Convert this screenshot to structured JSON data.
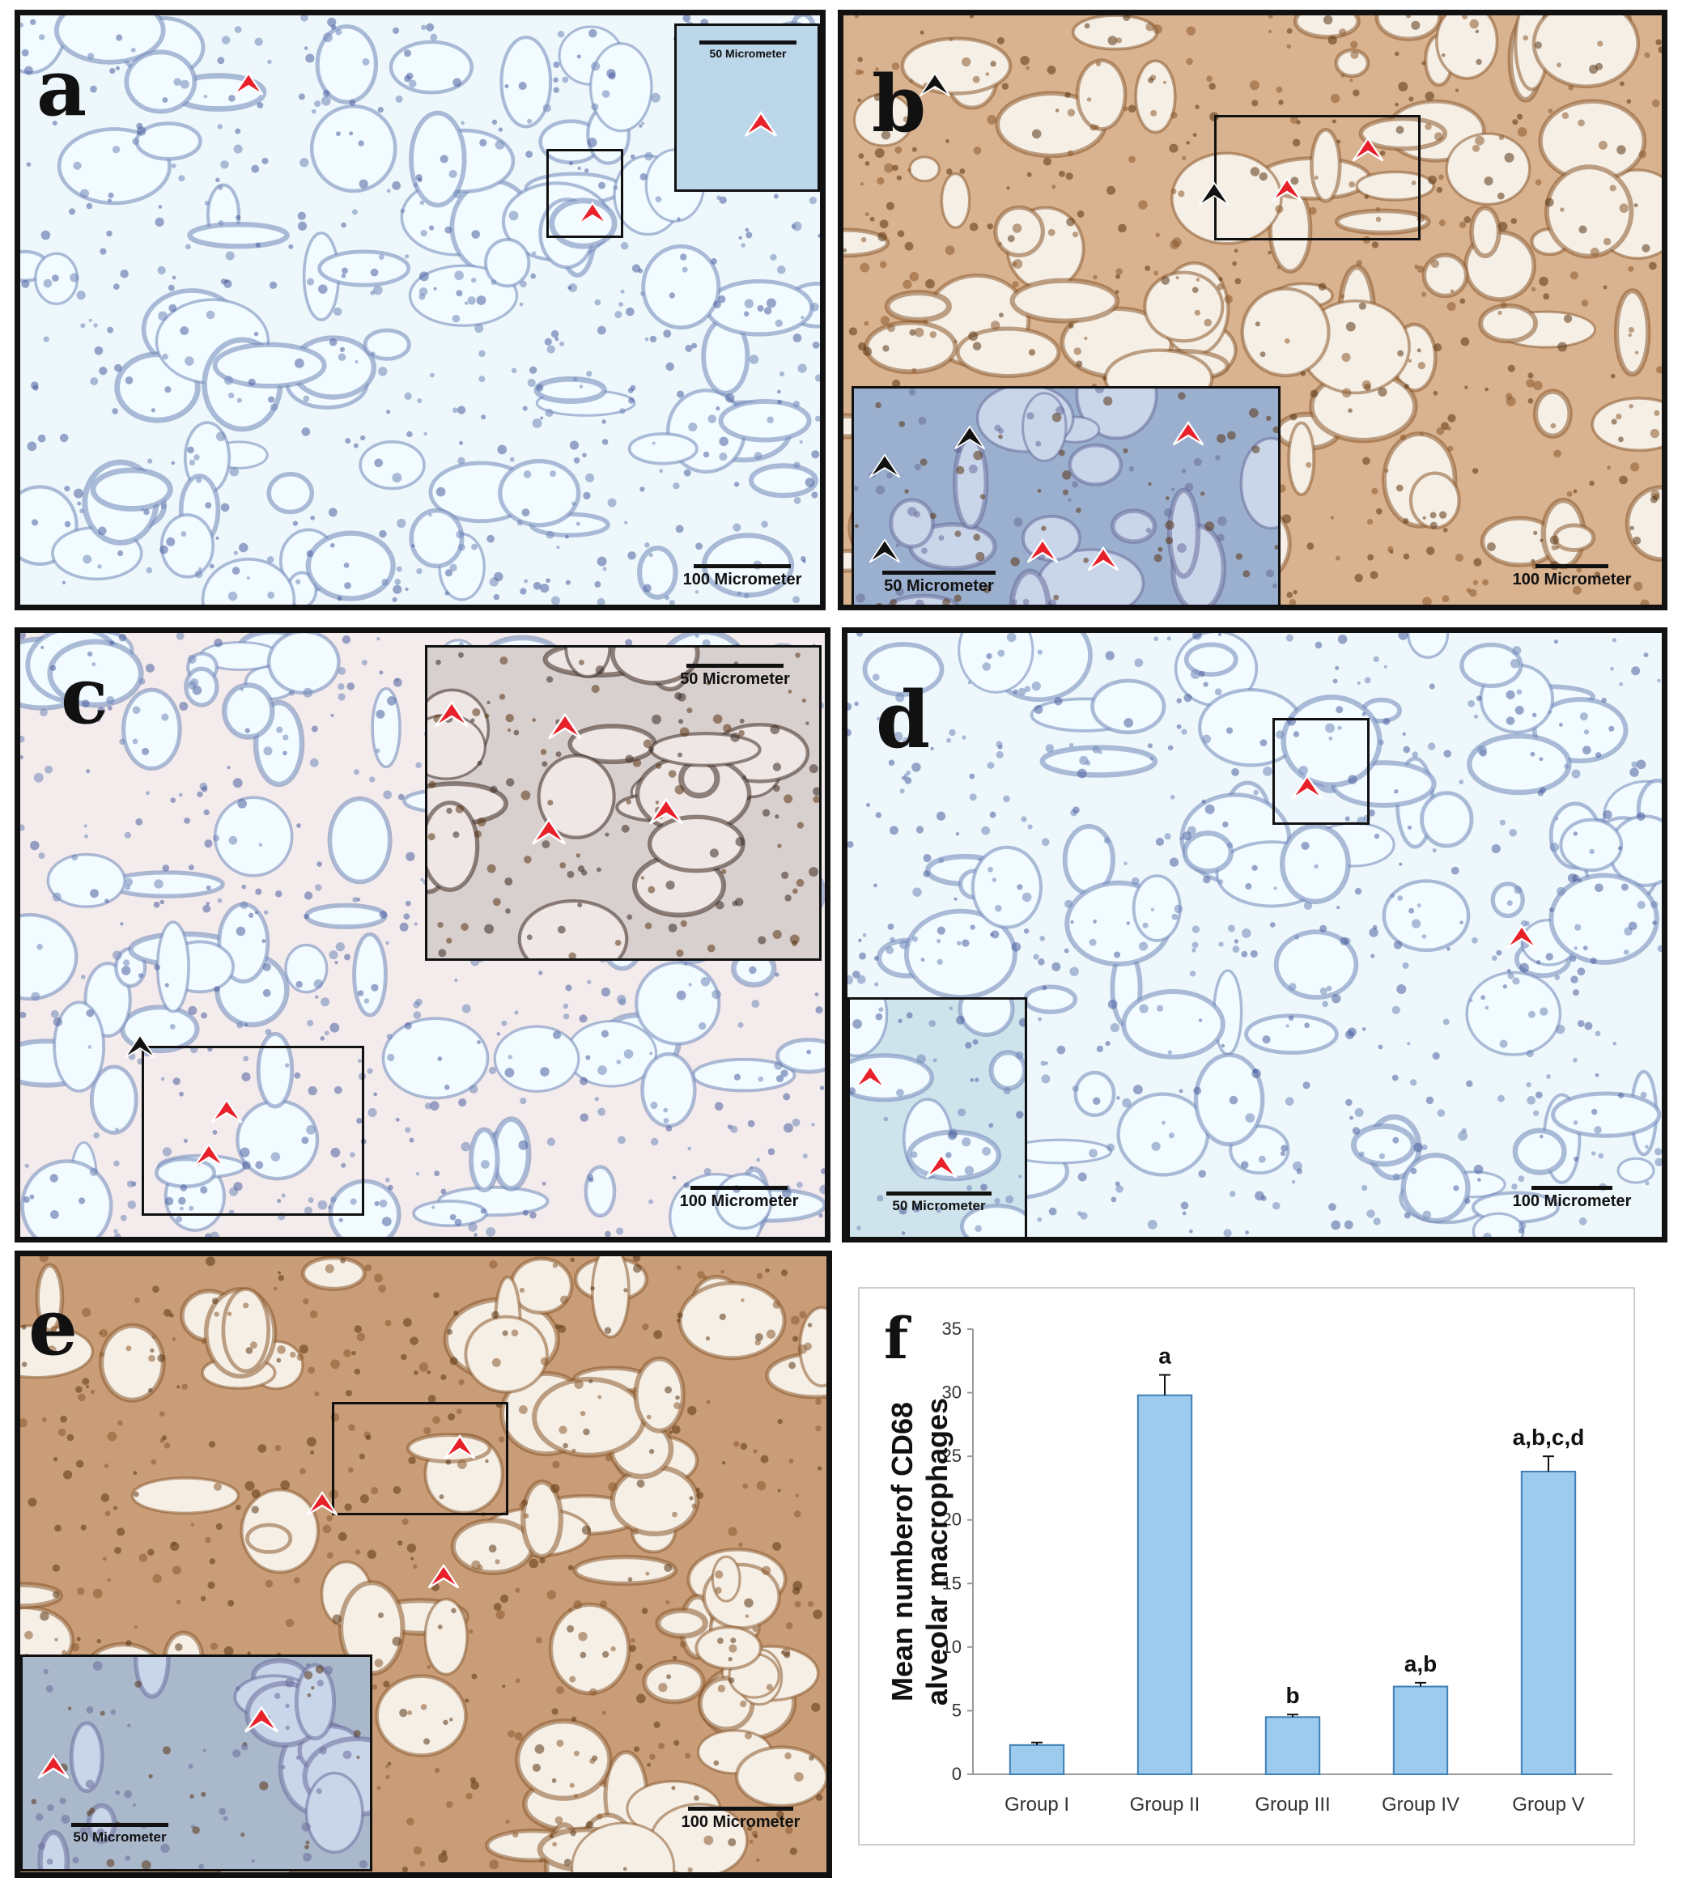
{
  "panels": [
    {
      "id": "a",
      "letter": "a",
      "scale_main": "100 Micrometer",
      "scale_inset": "50 Micrometer"
    },
    {
      "id": "b",
      "letter": "b",
      "scale_main": "100 Micrometer",
      "scale_inset": "50 Micrometer"
    },
    {
      "id": "c",
      "letter": "c",
      "scale_main": "100 Micrometer",
      "scale_inset": "50 Micrometer"
    },
    {
      "id": "d",
      "letter": "d",
      "scale_main": "100 Micrometer",
      "scale_inset": "50 Micrometer"
    },
    {
      "id": "e",
      "letter": "e",
      "scale_main": "100 Micrometer",
      "scale_inset": "50 Micrometer"
    }
  ],
  "colors": {
    "red_arrow": "#e8202a",
    "black_arrow": "#111111",
    "bar_fill": "#9ccbee",
    "bar_stroke": "#3f7fb5"
  },
  "chart_panel_letter": "f",
  "chart_data": {
    "type": "bar",
    "categories": [
      "Group I",
      "Group II",
      "Group III",
      "Group IV",
      "Group V"
    ],
    "values": [
      2.3,
      29.8,
      4.5,
      6.9,
      23.8
    ],
    "errors": [
      0.2,
      1.6,
      0.2,
      0.3,
      1.2
    ],
    "annotations": [
      "",
      "a",
      "b",
      "a,b",
      "a,b,c,d"
    ],
    "ylabel_line1": "Mean numberof CD68",
    "ylabel_line2": "alveolar macrophages",
    "ylim": [
      0,
      35
    ],
    "yticks": [
      0,
      5,
      10,
      15,
      20,
      25,
      30,
      35
    ],
    "grid": false
  }
}
